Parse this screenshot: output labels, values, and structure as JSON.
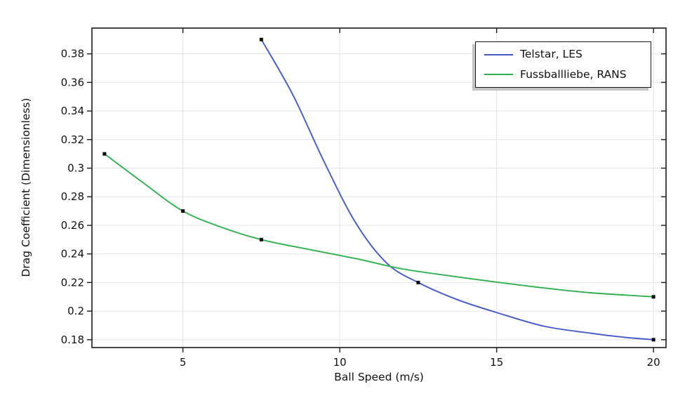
{
  "figure": {
    "background": "#ffffff",
    "axis_color": "#1a1a1a",
    "grid_color": "#e4e4e4",
    "text_color": "#111111",
    "marker_color": "#0d0d0d"
  },
  "legend": {
    "items": [
      {
        "label": "Telstar, LES",
        "color": "#4459cb"
      },
      {
        "label": "Fussballliebe, RANS",
        "color": "#2fb14d"
      }
    ]
  },
  "chart_data": {
    "type": "line",
    "title": "",
    "xlabel": "Ball Speed (m/s)",
    "ylabel": "Drag Coefficient (Dimensionless)",
    "xlim": [
      2.1,
      20.4
    ],
    "ylim": [
      0.1745,
      0.398
    ],
    "xticks": [
      5,
      10,
      15,
      20
    ],
    "xtick_labels": [
      "5",
      "10",
      "15",
      "20"
    ],
    "yticks": [
      0.18,
      0.2,
      0.22,
      0.24,
      0.26,
      0.28,
      0.3,
      0.32,
      0.34,
      0.36,
      0.38
    ],
    "ytick_labels": [
      "0.18",
      "0.2",
      "0.22",
      "0.24",
      "0.26",
      "0.28",
      "0.3",
      "0.32",
      "0.34",
      "0.36",
      "0.38"
    ],
    "grid": true,
    "legend_position": "top-right",
    "series": [
      {
        "name": "Telstar, LES",
        "color": "#4459cb",
        "marker": "square",
        "points": [
          [
            7.5,
            0.39
          ],
          [
            12.5,
            0.22
          ],
          [
            20,
            0.18
          ]
        ],
        "curve_samples": [
          [
            7.5,
            0.39
          ],
          [
            8.5,
            0.3515
          ],
          [
            9.5,
            0.3045
          ],
          [
            10.5,
            0.262
          ],
          [
            11.5,
            0.2335
          ],
          [
            12.5,
            0.22
          ],
          [
            13.75,
            0.208
          ],
          [
            15,
            0.199
          ],
          [
            16.5,
            0.1895
          ],
          [
            18,
            0.1845
          ],
          [
            19,
            0.1818
          ],
          [
            20,
            0.18
          ]
        ]
      },
      {
        "name": "Fussballliebe, RANS",
        "color": "#2fb14d",
        "marker": "square",
        "points": [
          [
            2.5,
            0.31
          ],
          [
            5,
            0.27
          ],
          [
            7.5,
            0.25
          ],
          [
            20,
            0.21
          ]
        ],
        "curve_samples": [
          [
            2.5,
            0.31
          ],
          [
            3.75,
            0.2895
          ],
          [
            5,
            0.27
          ],
          [
            6.25,
            0.2585
          ],
          [
            7.5,
            0.25
          ],
          [
            9,
            0.2432
          ],
          [
            10.5,
            0.2368
          ],
          [
            12,
            0.2295
          ],
          [
            13.5,
            0.2247
          ],
          [
            15,
            0.2203
          ],
          [
            16.5,
            0.2162
          ],
          [
            18,
            0.2128
          ],
          [
            20,
            0.21
          ]
        ]
      }
    ]
  }
}
